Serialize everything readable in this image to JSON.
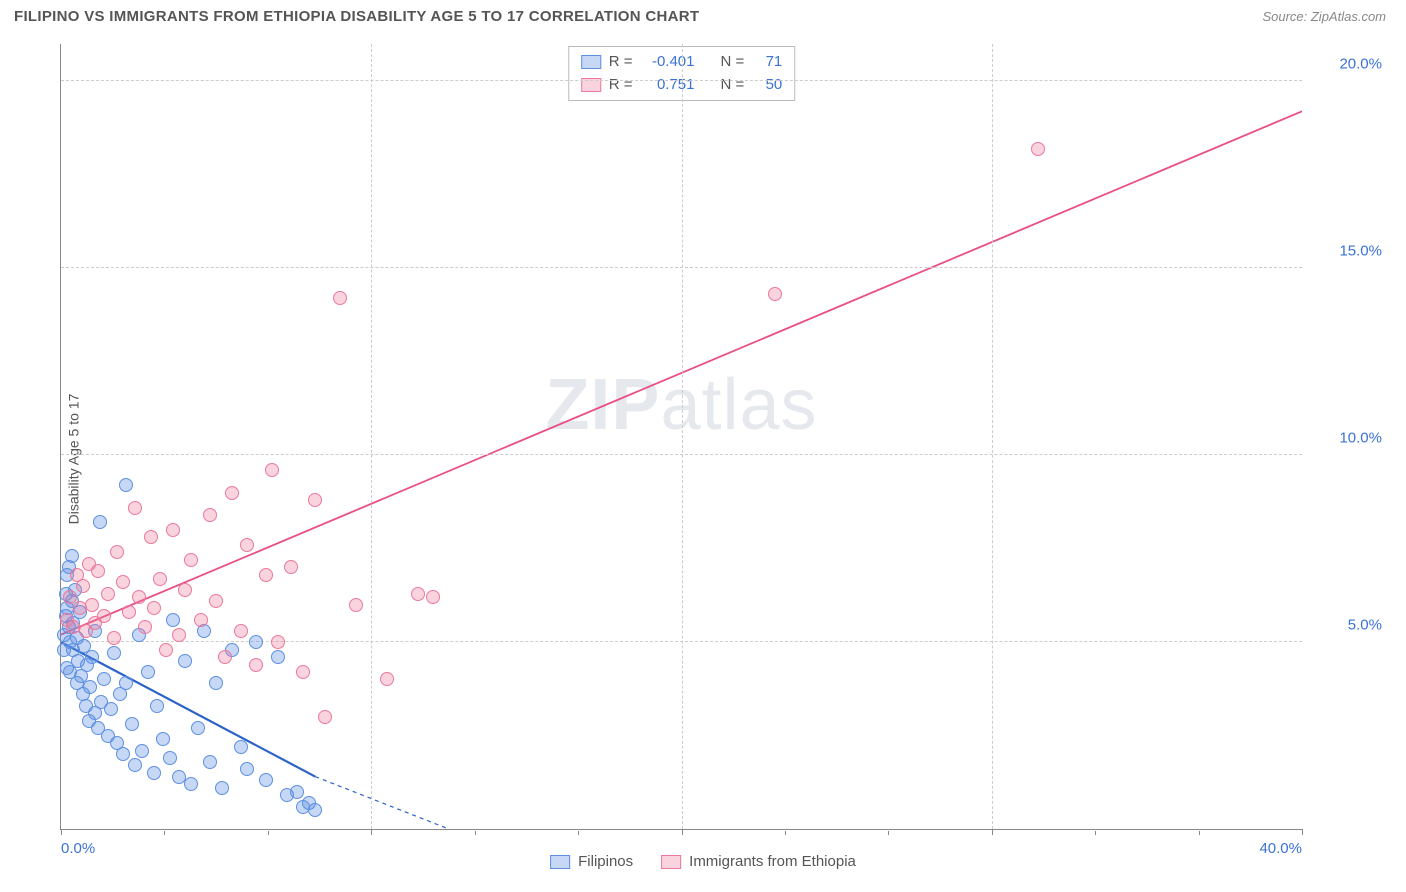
{
  "title": "FILIPINO VS IMMIGRANTS FROM ETHIOPIA DISABILITY AGE 5 TO 17 CORRELATION CHART",
  "source": "Source: ZipAtlas.com",
  "ylabel": "Disability Age 5 to 17",
  "watermark": "ZIPatlas",
  "chart": {
    "type": "scatter",
    "xlim": [
      0,
      40
    ],
    "ylim": [
      0,
      21
    ],
    "x_ticks": [
      0,
      10,
      20,
      30,
      40
    ],
    "x_tick_labels": [
      "0.0%",
      "",
      "",
      "",
      "40.0%"
    ],
    "x_minor_ticks": [
      3.33,
      6.67,
      13.33,
      16.67,
      23.33,
      26.67,
      33.33,
      36.67
    ],
    "y_ticks": [
      5,
      10,
      15,
      20
    ],
    "y_tick_labels": [
      "5.0%",
      "10.0%",
      "15.0%",
      "20.0%"
    ],
    "grid_color": "#cccccc",
    "axis_color": "#888888",
    "background_color": "#ffffff",
    "tick_label_color": "#3b72d4",
    "tick_label_fontsize": 15,
    "series": [
      {
        "name": "Filipinos",
        "color_fill": "rgba(93,144,226,0.35)",
        "color_stroke": "#5d90e2",
        "marker_size": 14,
        "R": "-0.401",
        "N": "71",
        "trend": {
          "x1": 0,
          "y1": 5.0,
          "x2": 8.2,
          "y2": 1.4,
          "dash_from_x": 8.2,
          "dash_to_x": 12.5,
          "dash_to_y": 0,
          "color": "#2b63c9",
          "width": 2.2
        },
        "points": [
          [
            0.1,
            4.8
          ],
          [
            0.1,
            5.2
          ],
          [
            0.15,
            6.3
          ],
          [
            0.15,
            5.7
          ],
          [
            0.2,
            6.8
          ],
          [
            0.2,
            5.9
          ],
          [
            0.2,
            4.3
          ],
          [
            0.25,
            5.4
          ],
          [
            0.25,
            7.0
          ],
          [
            0.3,
            5.0
          ],
          [
            0.3,
            4.2
          ],
          [
            0.35,
            6.1
          ],
          [
            0.35,
            7.3
          ],
          [
            0.4,
            5.5
          ],
          [
            0.4,
            4.8
          ],
          [
            0.45,
            6.4
          ],
          [
            0.5,
            5.1
          ],
          [
            0.5,
            3.9
          ],
          [
            0.55,
            4.5
          ],
          [
            0.6,
            5.8
          ],
          [
            0.65,
            4.1
          ],
          [
            0.7,
            3.6
          ],
          [
            0.75,
            4.9
          ],
          [
            0.8,
            3.3
          ],
          [
            0.85,
            4.4
          ],
          [
            0.9,
            2.9
          ],
          [
            0.95,
            3.8
          ],
          [
            1.0,
            4.6
          ],
          [
            1.1,
            3.1
          ],
          [
            1.1,
            5.3
          ],
          [
            1.2,
            2.7
          ],
          [
            1.25,
            8.2
          ],
          [
            1.3,
            3.4
          ],
          [
            1.4,
            4.0
          ],
          [
            1.5,
            2.5
          ],
          [
            1.6,
            3.2
          ],
          [
            1.7,
            4.7
          ],
          [
            1.8,
            2.3
          ],
          [
            1.9,
            3.6
          ],
          [
            2.0,
            2.0
          ],
          [
            2.1,
            9.2
          ],
          [
            2.1,
            3.9
          ],
          [
            2.3,
            2.8
          ],
          [
            2.4,
            1.7
          ],
          [
            2.5,
            5.2
          ],
          [
            2.6,
            2.1
          ],
          [
            2.8,
            4.2
          ],
          [
            3.0,
            1.5
          ],
          [
            3.1,
            3.3
          ],
          [
            3.3,
            2.4
          ],
          [
            3.5,
            1.9
          ],
          [
            3.6,
            5.6
          ],
          [
            3.8,
            1.4
          ],
          [
            4.0,
            4.5
          ],
          [
            4.2,
            1.2
          ],
          [
            4.4,
            2.7
          ],
          [
            4.6,
            5.3
          ],
          [
            4.8,
            1.8
          ],
          [
            5.0,
            3.9
          ],
          [
            5.2,
            1.1
          ],
          [
            5.5,
            4.8
          ],
          [
            5.8,
            2.2
          ],
          [
            6.0,
            1.6
          ],
          [
            6.3,
            5.0
          ],
          [
            6.6,
            1.3
          ],
          [
            7.0,
            4.6
          ],
          [
            7.3,
            0.9
          ],
          [
            7.6,
            1.0
          ],
          [
            7.8,
            0.6
          ],
          [
            8.0,
            0.7
          ],
          [
            8.2,
            0.5
          ]
        ]
      },
      {
        "name": "Immigrants from Ethiopia",
        "color_fill": "rgba(236,120,155,0.32)",
        "color_stroke": "#ec789b",
        "marker_size": 14,
        "R": "0.751",
        "N": "50",
        "trend": {
          "x1": 0,
          "y1": 5.2,
          "x2": 40,
          "y2": 19.2,
          "color": "#e94f83",
          "width": 1.8
        },
        "points": [
          [
            0.2,
            5.6
          ],
          [
            0.3,
            6.2
          ],
          [
            0.4,
            5.4
          ],
          [
            0.5,
            6.8
          ],
          [
            0.6,
            5.9
          ],
          [
            0.7,
            6.5
          ],
          [
            0.8,
            5.3
          ],
          [
            0.9,
            7.1
          ],
          [
            1.0,
            6.0
          ],
          [
            1.1,
            5.5
          ],
          [
            1.2,
            6.9
          ],
          [
            1.4,
            5.7
          ],
          [
            1.5,
            6.3
          ],
          [
            1.7,
            5.1
          ],
          [
            1.8,
            7.4
          ],
          [
            2.0,
            6.6
          ],
          [
            2.2,
            5.8
          ],
          [
            2.4,
            8.6
          ],
          [
            2.5,
            6.2
          ],
          [
            2.7,
            5.4
          ],
          [
            2.9,
            7.8
          ],
          [
            3.0,
            5.9
          ],
          [
            3.2,
            6.7
          ],
          [
            3.4,
            4.8
          ],
          [
            3.6,
            8.0
          ],
          [
            3.8,
            5.2
          ],
          [
            4.0,
            6.4
          ],
          [
            4.2,
            7.2
          ],
          [
            4.5,
            5.6
          ],
          [
            4.8,
            8.4
          ],
          [
            5.0,
            6.1
          ],
          [
            5.3,
            4.6
          ],
          [
            5.5,
            9.0
          ],
          [
            5.8,
            5.3
          ],
          [
            6.0,
            7.6
          ],
          [
            6.3,
            4.4
          ],
          [
            6.6,
            6.8
          ],
          [
            6.8,
            9.6
          ],
          [
            7.0,
            5.0
          ],
          [
            7.4,
            7.0
          ],
          [
            7.8,
            4.2
          ],
          [
            8.2,
            8.8
          ],
          [
            8.5,
            3.0
          ],
          [
            9.0,
            14.2
          ],
          [
            9.5,
            6.0
          ],
          [
            10.5,
            4.0
          ],
          [
            11.5,
            6.3
          ],
          [
            23.0,
            14.3
          ],
          [
            31.5,
            18.2
          ],
          [
            12.0,
            6.2
          ]
        ]
      }
    ]
  },
  "legend_bottom": [
    {
      "label": "Filipinos",
      "fill": "rgba(93,144,226,0.35)",
      "stroke": "#5d90e2"
    },
    {
      "label": "Immigrants from Ethiopia",
      "fill": "rgba(236,120,155,0.32)",
      "stroke": "#ec789b"
    }
  ],
  "stats_box": {
    "rows": [
      {
        "fill": "rgba(93,144,226,0.35)",
        "stroke": "#5d90e2",
        "R_label": "R =",
        "R": "-0.401",
        "N_label": "N =",
        "N": "71"
      },
      {
        "fill": "rgba(236,120,155,0.32)",
        "stroke": "#ec789b",
        "R_label": "R =",
        "R": "0.751",
        "N_label": "N =",
        "N": "50"
      }
    ]
  }
}
